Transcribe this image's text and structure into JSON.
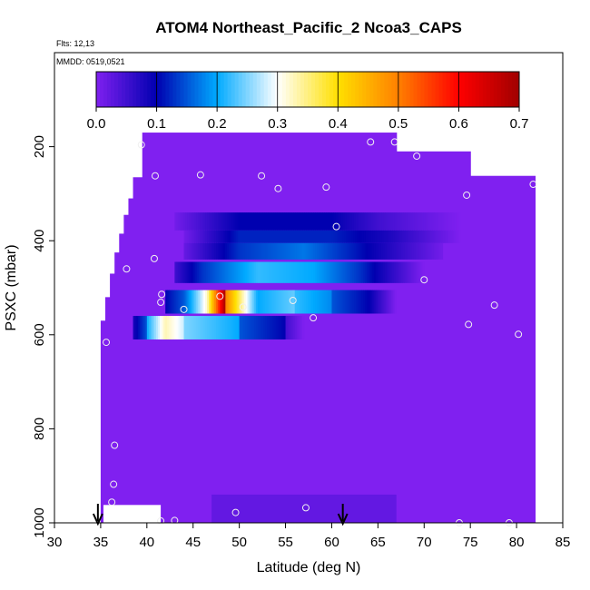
{
  "chart_data": {
    "type": "heatmap",
    "title": "ATOM4 Northeast_Pacific_2 Ncoa3_CAPS",
    "annotations": {
      "flights": "Flts: 12,13",
      "dates": "MMDD: 0519,0521"
    },
    "xlabel": "Latitude (deg N)",
    "ylabel": "PSXC (mbar)",
    "xlim": [
      30,
      85
    ],
    "ylim": [
      1000,
      0
    ],
    "x_ticks": [
      "30",
      "35",
      "40",
      "45",
      "50",
      "55",
      "60",
      "65",
      "70",
      "75",
      "80",
      "85"
    ],
    "y_ticks": [
      "200",
      "400",
      "600",
      "800",
      "1000"
    ],
    "colorbar": {
      "min": 0.0,
      "max": 0.7,
      "ticks": [
        "0.0",
        "0.1",
        "0.2",
        "0.3",
        "0.4",
        "0.5",
        "0.6",
        "0.7"
      ],
      "colors": [
        "#8020F0",
        "#0000B0",
        "#00AAFF",
        "#FFFFFF",
        "#FFE000",
        "#FF8000",
        "#FF0000",
        "#A00000"
      ]
    },
    "background_value": 0.0,
    "profile_coverage": [
      {
        "lat_from": 39.5,
        "lat_to": 67,
        "p_top": 170
      },
      {
        "lat_from": 67,
        "lat_to": 75,
        "p_top": 210
      },
      {
        "lat_from": 38.5,
        "lat_to": 39.5,
        "p_top": 265
      },
      {
        "lat_from": 75,
        "lat_to": 82,
        "p_top": 262
      },
      {
        "lat_from": 38,
        "lat_to": 38.5,
        "p_top": 310
      },
      {
        "lat_from": 37.5,
        "lat_to": 38,
        "p_top": 345
      },
      {
        "lat_from": 37,
        "lat_to": 37.5,
        "p_top": 385
      },
      {
        "lat_from": 36.5,
        "lat_to": 37,
        "p_top": 425
      },
      {
        "lat_from": 36,
        "lat_to": 36.5,
        "p_top": 470
      },
      {
        "lat_from": 35.5,
        "lat_to": 36,
        "p_top": 520
      },
      {
        "lat_from": 35,
        "lat_to": 35.5,
        "p_top": 570
      }
    ],
    "layers": [
      {
        "p_top": 340,
        "p_bottom": 378,
        "segments": [
          {
            "lat": [
              43,
              50
            ],
            "values": [
              0.01,
              0.1
            ]
          },
          {
            "lat": [
              50,
              60
            ],
            "values": [
              0.1,
              0.1
            ]
          },
          {
            "lat": [
              60,
              65
            ],
            "values": [
              0.1,
              0.05
            ]
          },
          {
            "lat": [
              65,
              74
            ],
            "values": [
              0.05,
              0.0
            ]
          }
        ]
      },
      {
        "p_top": 378,
        "p_bottom": 405,
        "segments": [
          {
            "lat": [
              44,
              50
            ],
            "values": [
              0.01,
              0.12
            ]
          },
          {
            "lat": [
              50,
              60
            ],
            "values": [
              0.12,
              0.12
            ]
          },
          {
            "lat": [
              60,
              66
            ],
            "values": [
              0.12,
              0.08
            ]
          },
          {
            "lat": [
              66,
              74
            ],
            "values": [
              0.08,
              0.0
            ]
          }
        ]
      },
      {
        "p_top": 405,
        "p_bottom": 440,
        "segments": [
          {
            "lat": [
              44,
              50
            ],
            "values": [
              0.02,
              0.13
            ]
          },
          {
            "lat": [
              50,
              57
            ],
            "values": [
              0.13,
              0.17
            ]
          },
          {
            "lat": [
              57,
              62
            ],
            "values": [
              0.17,
              0.12
            ]
          },
          {
            "lat": [
              62,
              72
            ],
            "values": [
              0.12,
              0.01
            ]
          }
        ]
      },
      {
        "p_top": 445,
        "p_bottom": 490,
        "segments": [
          {
            "lat": [
              43,
              46
            ],
            "values": [
              0.05,
              0.13
            ]
          },
          {
            "lat": [
              46,
              52
            ],
            "values": [
              0.13,
              0.22
            ]
          },
          {
            "lat": [
              52,
              58
            ],
            "values": [
              0.22,
              0.2
            ]
          },
          {
            "lat": [
              58,
              63
            ],
            "values": [
              0.2,
              0.13
            ]
          },
          {
            "lat": [
              63,
              70
            ],
            "values": [
              0.13,
              0.0
            ]
          }
        ]
      },
      {
        "p_top": 505,
        "p_bottom": 555,
        "segments": [
          {
            "lat": [
              42,
              44
            ],
            "values": [
              0.1,
              0.15
            ]
          },
          {
            "lat": [
              44,
              46.5
            ],
            "values": [
              0.15,
              0.32
            ]
          },
          {
            "lat": [
              46.5,
              48.5
            ],
            "values": [
              0.32,
              0.7
            ]
          },
          {
            "lat": [
              48.5,
              50.5
            ],
            "values": [
              0.5,
              0.32
            ]
          },
          {
            "lat": [
              50.5,
              52
            ],
            "values": [
              0.32,
              0.2
            ]
          },
          {
            "lat": [
              52,
              56
            ],
            "values": [
              0.2,
              0.24
            ]
          },
          {
            "lat": [
              56,
              60
            ],
            "values": [
              0.22,
              0.18
            ]
          },
          {
            "lat": [
              60,
              64
            ],
            "values": [
              0.15,
              0.1
            ]
          },
          {
            "lat": [
              64,
              67
            ],
            "values": [
              0.1,
              0.0
            ]
          }
        ]
      },
      {
        "p_top": 560,
        "p_bottom": 610,
        "segments": [
          {
            "lat": [
              38.5,
              40
            ],
            "values": [
              0.08,
              0.15
            ]
          },
          {
            "lat": [
              40,
              42
            ],
            "values": [
              0.2,
              0.33
            ]
          },
          {
            "lat": [
              42,
              44
            ],
            "values": [
              0.33,
              0.28
            ]
          },
          {
            "lat": [
              44,
              50
            ],
            "values": [
              0.25,
              0.2
            ]
          },
          {
            "lat": [
              50,
              55
            ],
            "values": [
              0.15,
              0.1
            ]
          },
          {
            "lat": [
              55,
              57
            ],
            "values": [
              0.05,
              0.0
            ]
          }
        ]
      }
    ],
    "surface_band": {
      "lat": [
        47,
        67
      ],
      "p_top": 940,
      "p_bottom": 1000,
      "value": 0.03
    },
    "points": [
      [
        39.4,
        196
      ],
      [
        40.9,
        262
      ],
      [
        45.8,
        260
      ],
      [
        52.4,
        262
      ],
      [
        54.2,
        289
      ],
      [
        59.4,
        286
      ],
      [
        64.2,
        190
      ],
      [
        66.8,
        190
      ],
      [
        69.2,
        220
      ],
      [
        74.6,
        303
      ],
      [
        81.8,
        280
      ],
      [
        40.8,
        438
      ],
      [
        37.8,
        460
      ],
      [
        41.6,
        514
      ],
      [
        41.5,
        531
      ],
      [
        60.5,
        370
      ],
      [
        70.0,
        483
      ],
      [
        47.9,
        518
      ],
      [
        44.0,
        546
      ],
      [
        50.4,
        541
      ],
      [
        55.8,
        527
      ],
      [
        58.0,
        564
      ],
      [
        77.6,
        537
      ],
      [
        74.8,
        578
      ],
      [
        80.2,
        599
      ],
      [
        35.6,
        616
      ],
      [
        36.5,
        835
      ],
      [
        36.4,
        918
      ],
      [
        36.2,
        956
      ],
      [
        41.5,
        996
      ],
      [
        43.0,
        995
      ],
      [
        49.6,
        978
      ],
      [
        57.2,
        968
      ],
      [
        73.8,
        1000
      ],
      [
        79.2,
        1000
      ]
    ],
    "arrows_lat": [
      34.7,
      61.2
    ]
  }
}
